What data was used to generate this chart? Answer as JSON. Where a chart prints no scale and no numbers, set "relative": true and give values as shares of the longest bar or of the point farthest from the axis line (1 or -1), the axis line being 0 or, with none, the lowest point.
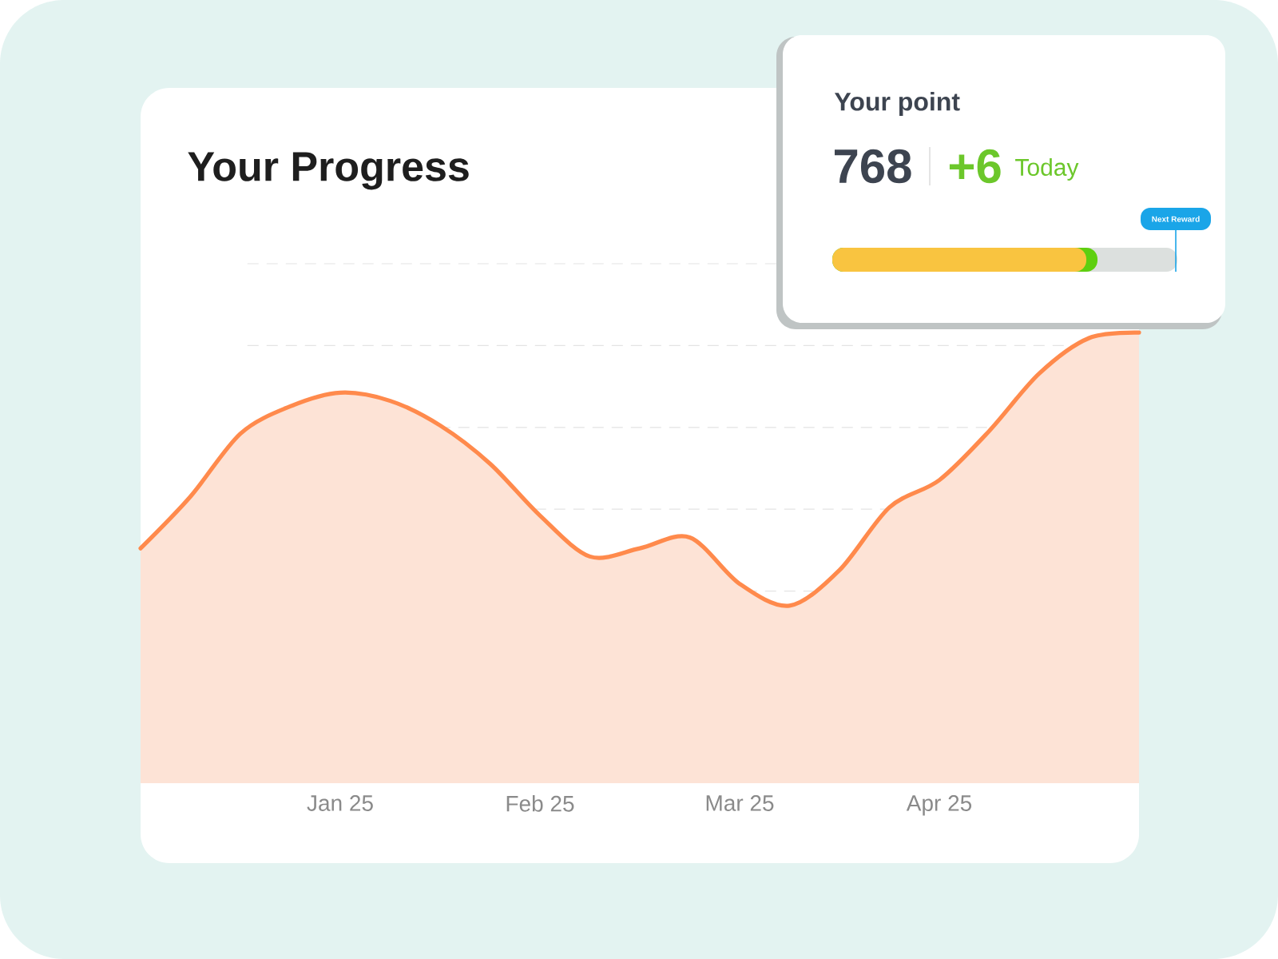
{
  "chart_data": {
    "type": "area",
    "title": "Your Progress",
    "relative": true,
    "color": "#ff8a4c",
    "grid": "y",
    "categories": [
      null,
      null,
      null,
      null,
      "Jan 25",
      null,
      null,
      null,
      "Feb 25",
      null,
      null,
      null,
      "Mar 25",
      null,
      null,
      null,
      "Apr 25",
      null,
      null,
      null,
      null
    ],
    "values": [
      0.21,
      0.4,
      0.63,
      0.73,
      0.78,
      0.75,
      0.66,
      0.52,
      0.33,
      0.18,
      0.21,
      0.25,
      0.08,
      0,
      0.13,
      0.36,
      0.46,
      0.64,
      0.85,
      0.98,
      1
    ],
    "annotations": [
      "Your point",
      "768",
      "+6",
      "Today",
      "Next Reward"
    ]
  }
}
